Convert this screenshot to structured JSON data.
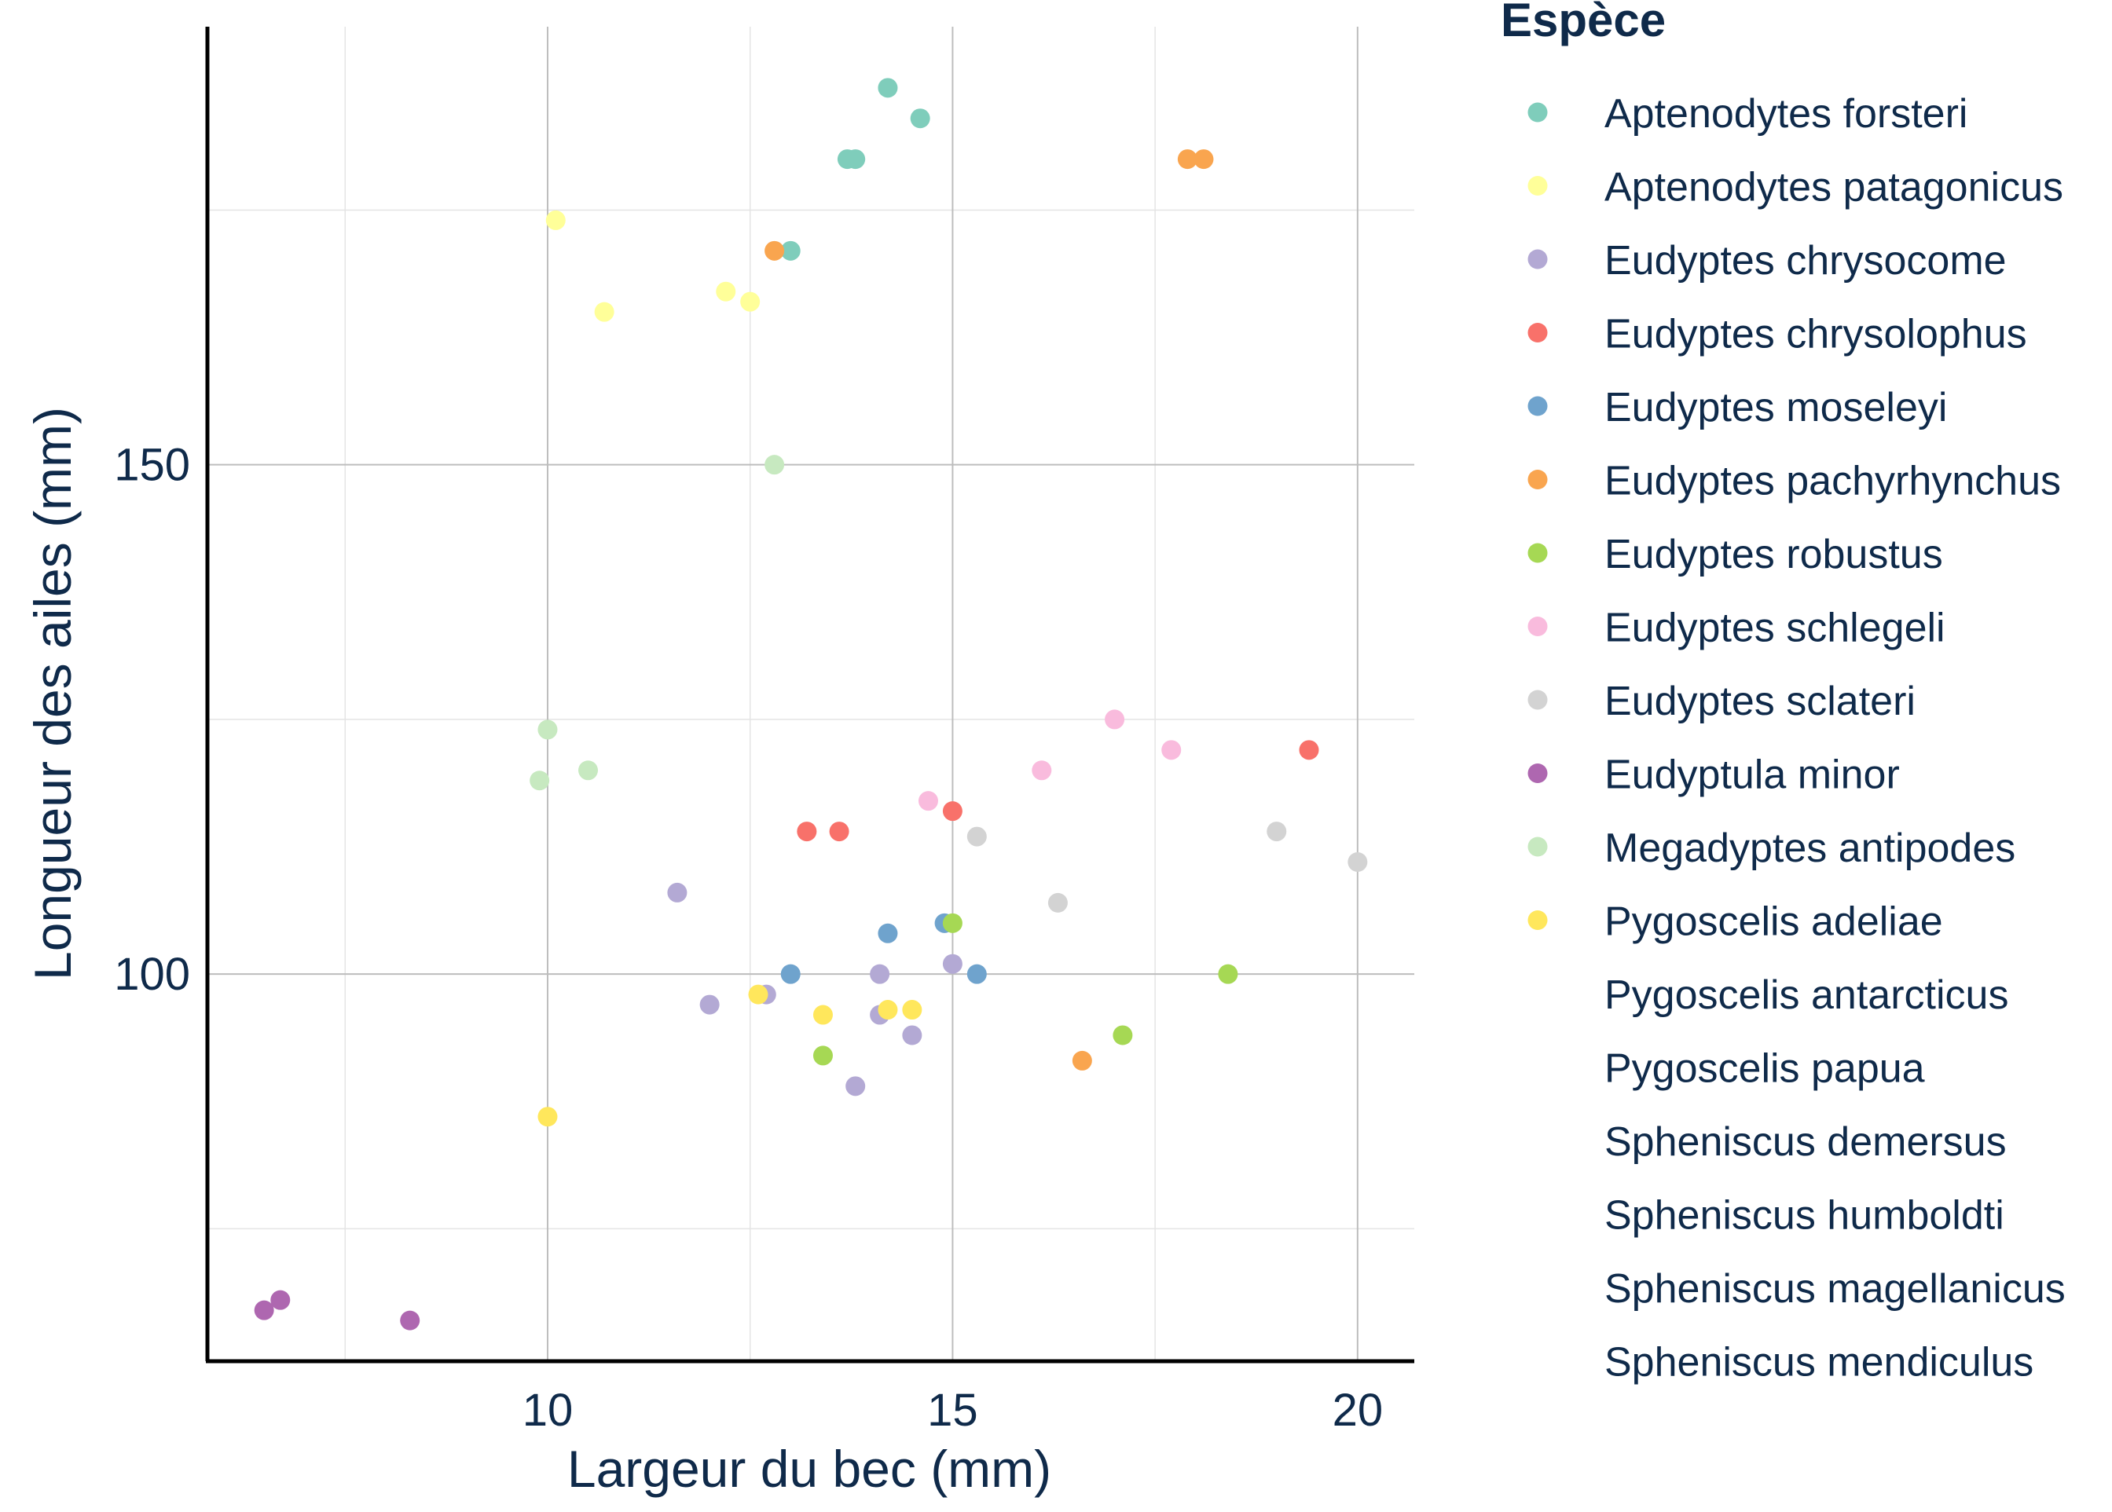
{
  "chart_data": {
    "type": "scatter",
    "title": "",
    "xlabel": "Largeur du bec (mm)",
    "ylabel": "Longueur des ailes (mm)",
    "xlim": [
      5.8,
      20.7
    ],
    "ylim": [
      62,
      193
    ],
    "x_ticks": [
      10,
      15,
      20
    ],
    "y_ticks": [
      100,
      150
    ],
    "x_minor": [
      7.5,
      12.5,
      17.5
    ],
    "y_minor": [
      75,
      125,
      175
    ],
    "grid": true,
    "legend": {
      "title": "Espèce",
      "placement": "right"
    },
    "series": [
      {
        "name": "Aptenodytes forsteri",
        "color": "#7fcdbb",
        "points": [
          [
            14.2,
            187
          ],
          [
            14.6,
            184
          ],
          [
            13.7,
            180
          ],
          [
            13.8,
            180
          ],
          [
            13,
            171
          ]
        ]
      },
      {
        "name": "Aptenodytes patagonicus",
        "color": "#ffff99",
        "points": [
          [
            10.1,
            174
          ],
          [
            10.7,
            165
          ],
          [
            12.2,
            167
          ],
          [
            12.5,
            166
          ]
        ]
      },
      {
        "name": "Eudyptes chrysocome",
        "color": "#b3a9d4",
        "points": [
          [
            11.6,
            108
          ],
          [
            12,
            97
          ],
          [
            12.7,
            98
          ],
          [
            14.1,
            100
          ],
          [
            14.1,
            96
          ],
          [
            15,
            101
          ],
          [
            14.5,
            94
          ],
          [
            13.8,
            89
          ]
        ]
      },
      {
        "name": "Eudyptes chrysolophus",
        "color": "#f8716a",
        "points": [
          [
            13.2,
            114
          ],
          [
            13.6,
            114
          ],
          [
            15,
            116
          ],
          [
            19.4,
            122
          ]
        ]
      },
      {
        "name": "Eudyptes moseleyi",
        "color": "#6fa3cd",
        "points": [
          [
            14.2,
            104
          ],
          [
            14.9,
            105
          ],
          [
            13,
            100
          ],
          [
            15.3,
            100
          ]
        ]
      },
      {
        "name": "Eudyptes pachyrhynchus",
        "color": "#f9a54f",
        "points": [
          [
            12.8,
            171
          ],
          [
            17.9,
            180
          ],
          [
            18.1,
            180
          ],
          [
            16.6,
            91.5
          ]
        ]
      },
      {
        "name": "Eudyptes robustus",
        "color": "#a6d854",
        "points": [
          [
            15,
            105
          ],
          [
            18.4,
            100
          ],
          [
            17.1,
            94
          ],
          [
            13.4,
            92
          ]
        ]
      },
      {
        "name": "Eudyptes schlegeli",
        "color": "#f9bbdd",
        "points": [
          [
            17,
            125
          ],
          [
            17.7,
            122
          ],
          [
            16.1,
            120
          ],
          [
            14.7,
            117
          ]
        ]
      },
      {
        "name": "Eudyptes sclateri",
        "color": "#d3d3d3",
        "points": [
          [
            15.3,
            113.5
          ],
          [
            19,
            114
          ],
          [
            20,
            111
          ],
          [
            16.3,
            107
          ]
        ]
      },
      {
        "name": "Eudyptula minor",
        "color": "#ae67b0",
        "points": [
          [
            6.5,
            67
          ],
          [
            6.7,
            68
          ],
          [
            8.3,
            66
          ]
        ]
      },
      {
        "name": "Megadyptes antipodes",
        "color": "#c7e9c0",
        "points": [
          [
            12.8,
            150
          ],
          [
            10,
            124
          ],
          [
            9.9,
            119
          ],
          [
            10.5,
            120
          ]
        ]
      },
      {
        "name": "Pygoscelis adeliae",
        "color": "#ffe75c",
        "points": [
          [
            12.6,
            98
          ],
          [
            13.4,
            96
          ],
          [
            14.2,
            96.5
          ],
          [
            14.5,
            96.5
          ],
          [
            10,
            86
          ]
        ]
      },
      {
        "name": "Pygoscelis antarcticus",
        "color": "#ffffff",
        "points": []
      },
      {
        "name": "Pygoscelis papua",
        "color": "#ffffff",
        "points": []
      },
      {
        "name": "Spheniscus demersus",
        "color": "#ffffff",
        "points": []
      },
      {
        "name": "Spheniscus humboldti",
        "color": "#ffffff",
        "points": []
      },
      {
        "name": "Spheniscus magellanicus",
        "color": "#ffffff",
        "points": []
      },
      {
        "name": "Spheniscus mendiculus",
        "color": "#ffffff",
        "points": []
      }
    ]
  }
}
